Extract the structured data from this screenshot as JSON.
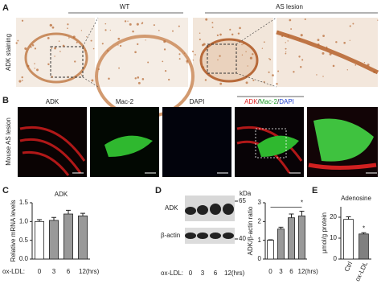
{
  "panel_labels": [
    "A",
    "B",
    "C",
    "D",
    "E"
  ],
  "panel_a": {
    "row_label": "ADK staining",
    "groups": [
      "WT",
      "AS lesion"
    ]
  },
  "panel_b": {
    "row_label": "Mouse AS lesion",
    "channels": [
      {
        "text": "ADK",
        "color": "#e02020"
      },
      {
        "text": "Mac-2",
        "color": "#1f9e2a"
      },
      {
        "text": "DAPI",
        "color": "#2545d0"
      }
    ],
    "merge_parts": [
      {
        "text": "ADK",
        "color": "#e02020"
      },
      {
        "text": "/",
        "color": "#222222"
      },
      {
        "text": "Mac-2",
        "color": "#1f9e2a"
      },
      {
        "text": "/",
        "color": "#222222"
      },
      {
        "text": "DAPI",
        "color": "#2545d0"
      }
    ]
  },
  "blot": {
    "bands": [
      "ADK",
      "β-actin"
    ],
    "unit": "kDa",
    "markers": [
      "65",
      "40"
    ],
    "x_label": "ox-LDL:",
    "categories": [
      "0",
      "3",
      "6",
      "12(hrs)"
    ]
  },
  "chart_data": [
    {
      "type": "bar",
      "title": "ADK",
      "y_label": "Relative mRNA levels",
      "x_label": "ox-LDL:",
      "categories": [
        "0",
        "3",
        "6",
        "12(hrs)"
      ],
      "values": [
        1,
        1.03,
        1.2,
        1.15
      ],
      "errors": [
        0.05,
        0.08,
        0.1,
        0.07
      ],
      "colors": [
        "#ffffff",
        "#999999",
        "#999999",
        "#999999"
      ],
      "ylim": [
        0,
        1.5
      ],
      "yticks": [
        {
          "value": 0,
          "label": "0.0"
        },
        {
          "value": 0.5,
          "label": "0.5"
        },
        {
          "value": 1,
          "label": "1.0"
        },
        {
          "value": 1.5,
          "label": "1.5"
        }
      ]
    },
    {
      "type": "bar",
      "y_label": "ADK/β-actin ratio",
      "categories": [
        "0",
        "3",
        "6",
        "12(hrs)"
      ],
      "values": [
        1,
        1.6,
        2.2,
        2.3
      ],
      "errors": [
        0.03,
        0.1,
        0.2,
        0.25
      ],
      "colors": [
        "#ffffff",
        "#999999",
        "#999999",
        "#999999"
      ],
      "ylim": [
        0,
        3
      ],
      "yticks": [
        0,
        1,
        2,
        3
      ],
      "annotation": "*"
    },
    {
      "type": "bar",
      "title": "Adenosine",
      "y_label": "μmol/g protein",
      "categories": [
        "Ctrl",
        "ox-LDL"
      ],
      "values": [
        19,
        12
      ],
      "errors": [
        1.2,
        0.6
      ],
      "colors": [
        "#ffffff",
        "#808080"
      ],
      "ylim": [
        0,
        25
      ],
      "yticks": [
        0,
        10,
        20
      ],
      "annotation": "*",
      "rotate_labels": true
    }
  ]
}
